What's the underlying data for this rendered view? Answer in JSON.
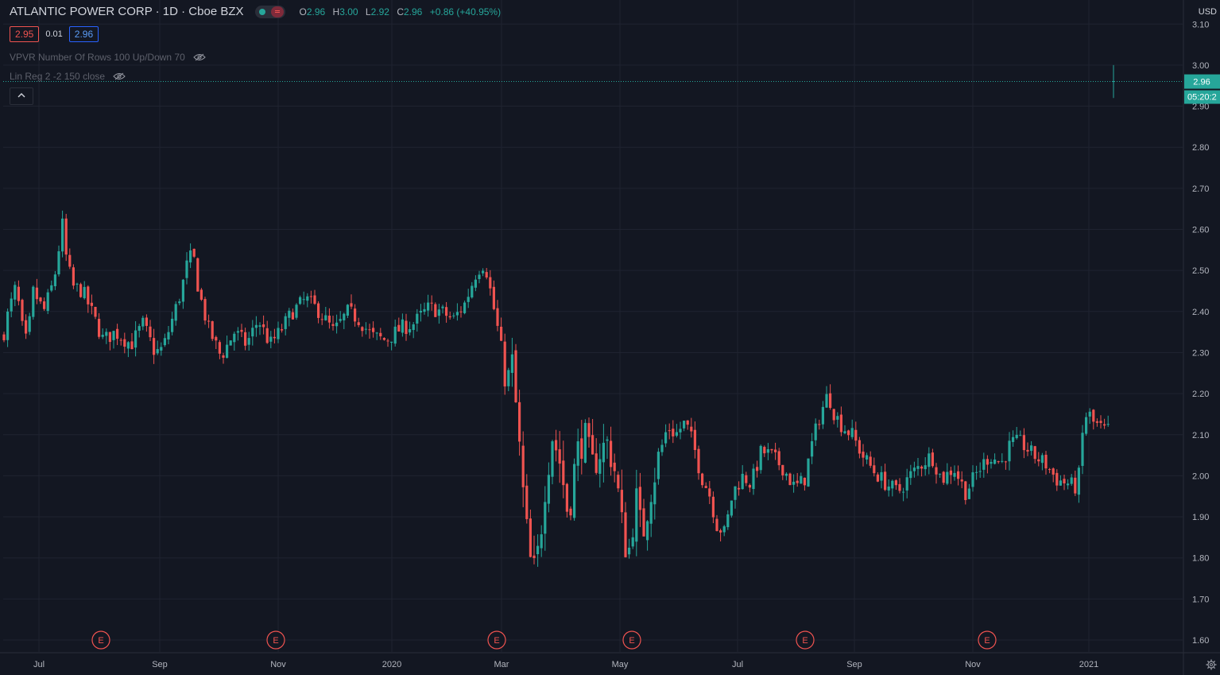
{
  "header": {
    "symbol_title": "ATLANTIC POWER CORP · 1D · Cboe BZX",
    "ohlc": {
      "o_label": "O",
      "o": "2.96",
      "h_label": "H",
      "h": "3.00",
      "l_label": "L",
      "l": "2.92",
      "c_label": "C",
      "c": "2.96",
      "change": "+0.86 (+40.95%)"
    },
    "bid": "2.95",
    "spread": "0.01",
    "ask": "2.96"
  },
  "indicators": [
    {
      "label": "VPVR Number Of Rows 100 Up/Down 70"
    },
    {
      "label": "Lin Reg 2 -2 150 close"
    }
  ],
  "price_axis": {
    "currency": "USD",
    "last_price": "2.96",
    "countdown": "05:20:2"
  },
  "colors": {
    "background": "#131722",
    "up": "#26a69a",
    "down": "#ef5350",
    "grid": "#1f2330",
    "text": "#b2b5be",
    "accent": "#2962ff"
  },
  "chart_data": {
    "type": "candlestick",
    "ylim": [
      1.55,
      3.12
    ],
    "y_ticks": [
      "1.60",
      "1.70",
      "1.80",
      "1.90",
      "2.00",
      "2.10",
      "2.20",
      "2.30",
      "2.40",
      "2.50",
      "2.60",
      "2.70",
      "2.80",
      "2.90",
      "3.00",
      "3.10"
    ],
    "x_ticks": [
      "Jul",
      "Sep",
      "Nov",
      "2020",
      "Mar",
      "May",
      "Jul",
      "Sep",
      "Nov",
      "2021"
    ],
    "earnings_label": "E",
    "earnings_count": 6,
    "grid": true,
    "price_path": [
      [
        0,
        2.3
      ],
      [
        8,
        2.38
      ],
      [
        20,
        2.46
      ],
      [
        28,
        2.36
      ],
      [
        34,
        2.32
      ],
      [
        42,
        2.45
      ],
      [
        55,
        2.4
      ],
      [
        67,
        2.47
      ],
      [
        72,
        2.52
      ],
      [
        78,
        2.62
      ],
      [
        84,
        2.52
      ],
      [
        92,
        2.46
      ],
      [
        104,
        2.45
      ],
      [
        115,
        2.4
      ],
      [
        130,
        2.33
      ],
      [
        145,
        2.35
      ],
      [
        165,
        2.32
      ],
      [
        180,
        2.37
      ],
      [
        195,
        2.3
      ],
      [
        205,
        2.31
      ],
      [
        215,
        2.37
      ],
      [
        228,
        2.45
      ],
      [
        236,
        2.52
      ],
      [
        243,
        2.54
      ],
      [
        250,
        2.45
      ],
      [
        262,
        2.36
      ],
      [
        278,
        2.29
      ],
      [
        295,
        2.35
      ],
      [
        310,
        2.32
      ],
      [
        325,
        2.38
      ],
      [
        340,
        2.32
      ],
      [
        352,
        2.35
      ],
      [
        368,
        2.4
      ],
      [
        385,
        2.43
      ],
      [
        402,
        2.4
      ],
      [
        420,
        2.35
      ],
      [
        438,
        2.4
      ],
      [
        452,
        2.38
      ],
      [
        468,
        2.34
      ],
      [
        485,
        2.33
      ],
      [
        505,
        2.36
      ],
      [
        520,
        2.37
      ],
      [
        540,
        2.41
      ],
      [
        555,
        2.4
      ],
      [
        570,
        2.38
      ],
      [
        585,
        2.42
      ],
      [
        600,
        2.5
      ],
      [
        610,
        2.52
      ],
      [
        617,
        2.45
      ],
      [
        624,
        2.38
      ],
      [
        630,
        2.32
      ],
      [
        636,
        2.22
      ],
      [
        644,
        2.28
      ],
      [
        650,
        2.15
      ],
      [
        657,
        1.98
      ],
      [
        663,
        1.86
      ],
      [
        670,
        1.75
      ],
      [
        678,
        1.82
      ],
      [
        686,
        1.98
      ],
      [
        695,
        2.1
      ],
      [
        705,
        2.03
      ],
      [
        715,
        1.9
      ],
      [
        725,
        2.05
      ],
      [
        735,
        2.1
      ],
      [
        745,
        2.02
      ],
      [
        755,
        2.06
      ],
      [
        765,
        2.08
      ],
      [
        775,
        2.0
      ],
      [
        785,
        1.84
      ],
      [
        792,
        1.82
      ],
      [
        800,
        1.95
      ],
      [
        808,
        1.85
      ],
      [
        818,
        1.96
      ],
      [
        828,
        2.04
      ],
      [
        840,
        2.12
      ],
      [
        850,
        2.1
      ],
      [
        862,
        2.13
      ],
      [
        872,
        2.08
      ],
      [
        882,
        2.0
      ],
      [
        892,
        1.96
      ],
      [
        902,
        1.88
      ],
      [
        912,
        1.86
      ],
      [
        922,
        1.96
      ],
      [
        935,
        2.0
      ],
      [
        945,
        1.98
      ],
      [
        958,
        2.06
      ],
      [
        970,
        2.05
      ],
      [
        985,
        2.02
      ],
      [
        1000,
        1.97
      ],
      [
        1012,
        1.99
      ],
      [
        1022,
        2.08
      ],
      [
        1032,
        2.15
      ],
      [
        1042,
        2.2
      ],
      [
        1050,
        2.15
      ],
      [
        1060,
        2.12
      ],
      [
        1072,
        2.1
      ],
      [
        1085,
        2.05
      ],
      [
        1100,
        2.01
      ],
      [
        1115,
        1.98
      ],
      [
        1130,
        1.96
      ],
      [
        1145,
        2.0
      ],
      [
        1160,
        2.03
      ],
      [
        1172,
        2.05
      ],
      [
        1185,
        1.99
      ],
      [
        1200,
        2.02
      ],
      [
        1215,
        1.96
      ],
      [
        1230,
        2.01
      ],
      [
        1245,
        2.05
      ],
      [
        1260,
        2.03
      ],
      [
        1272,
        2.08
      ],
      [
        1285,
        2.08
      ],
      [
        1300,
        2.05
      ],
      [
        1315,
        2.03
      ],
      [
        1330,
        1.99
      ],
      [
        1345,
        1.98
      ],
      [
        1356,
        1.97
      ],
      [
        1362,
        2.1
      ],
      [
        1368,
        2.16
      ],
      [
        1375,
        2.13
      ],
      [
        1382,
        2.12
      ],
      [
        1390,
        2.11
      ],
      [
        1398,
        2.11
      ]
    ]
  }
}
